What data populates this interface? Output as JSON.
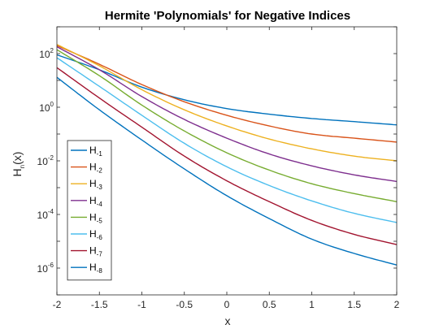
{
  "chart_data": {
    "type": "line",
    "title": "Hermite 'Polynomials' for Negative Indices",
    "xlabel": "x",
    "ylabel_main": "H",
    "ylabel_sub": "n",
    "ylabel_tail": "(x)",
    "xlim": [
      -2,
      2
    ],
    "ylim": [
      1e-07,
      1000
    ],
    "yscale": "log",
    "grid": false,
    "legend_position": "bottom-left",
    "x_ticks": [
      {
        "v": -2,
        "label": "-2"
      },
      {
        "v": -1.5,
        "label": "-1.5"
      },
      {
        "v": -1,
        "label": "-1"
      },
      {
        "v": -0.5,
        "label": "-0.5"
      },
      {
        "v": 0,
        "label": "0"
      },
      {
        "v": 0.5,
        "label": "0.5"
      },
      {
        "v": 1,
        "label": "1"
      },
      {
        "v": 1.5,
        "label": "1.5"
      },
      {
        "v": 2,
        "label": "2"
      }
    ],
    "y_ticks": [
      {
        "exp": 2,
        "base": "10",
        "sup": "2"
      },
      {
        "exp": 0,
        "base": "10",
        "sup": "0"
      },
      {
        "exp": -2,
        "base": "10",
        "sup": "-2"
      },
      {
        "exp": -4,
        "base": "10",
        "sup": "-4"
      },
      {
        "exp": -6,
        "base": "10",
        "sup": "-6"
      }
    ],
    "x": [
      -2,
      -1.5,
      -1,
      -0.5,
      0,
      0.5,
      1,
      1.5,
      2
    ],
    "series": [
      {
        "name": "H",
        "sub": "-1",
        "color": "#0072BD",
        "values": [
          90,
          25,
          5.6,
          1.9,
          0.89,
          0.55,
          0.38,
          0.29,
          0.22
        ]
      },
      {
        "name": "H",
        "sub": "-2",
        "color": "#D95319",
        "values": [
          200,
          40,
          7,
          1.6,
          0.5,
          0.2,
          0.1,
          0.07,
          0.05
        ]
      },
      {
        "name": "H",
        "sub": "-3",
        "color": "#EDB120",
        "values": [
          220,
          35,
          4.5,
          0.8,
          0.2,
          0.065,
          0.028,
          0.015,
          0.01
        ]
      },
      {
        "name": "H",
        "sub": "-4",
        "color": "#7E2F8E",
        "values": [
          180,
          25,
          2.5,
          0.35,
          0.07,
          0.018,
          0.0065,
          0.003,
          0.0017
        ]
      },
      {
        "name": "H",
        "sub": "-5",
        "color": "#77AC30",
        "values": [
          140,
          15,
          1.2,
          0.13,
          0.02,
          0.0045,
          0.0014,
          0.0006,
          0.0003
        ]
      },
      {
        "name": "H",
        "sub": "-6",
        "color": "#4DBEEE",
        "values": [
          70,
          6,
          0.5,
          0.045,
          0.006,
          0.0012,
          0.00032,
          0.00011,
          5e-05
        ]
      },
      {
        "name": "H",
        "sub": "-7",
        "color": "#A2142F",
        "values": [
          30,
          2.2,
          0.18,
          0.015,
          0.0018,
          0.0003,
          6e-05,
          1.8e-05,
          7.5e-06
        ]
      },
      {
        "name": "H",
        "sub": "-8",
        "color": "#0072BD",
        "values": [
          13,
          0.8,
          0.06,
          0.005,
          0.0005,
          7e-05,
          1.2e-05,
          3.5e-06,
          1.3e-06
        ]
      }
    ]
  }
}
